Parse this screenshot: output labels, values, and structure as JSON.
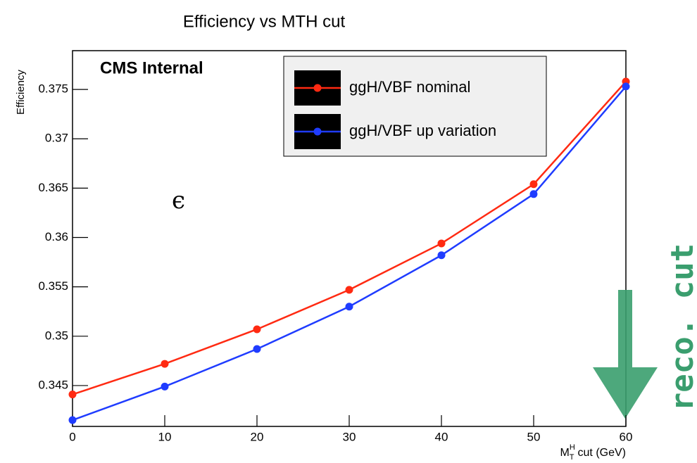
{
  "chart_data": {
    "type": "line",
    "title": "Efficiency vs MTH cut",
    "ylabel": "Efficiency",
    "xlabel": {
      "symbol": "M",
      "superscript": "H",
      "subscript": "T",
      "text": "cut (GeV)"
    },
    "annotations": {
      "experiment": "CMS Internal",
      "symbol": "ϵ",
      "side_note": "reco. cut"
    },
    "x": [
      0,
      10,
      20,
      30,
      40,
      50,
      60
    ],
    "series": [
      {
        "name": "ggH/VBF nominal",
        "color": "#ff2a12",
        "values": [
          0.3441,
          0.3472,
          0.3507,
          0.3547,
          0.3594,
          0.3654,
          0.3758
        ]
      },
      {
        "name": "ggH/VBF up variation",
        "color": "#1f3cff",
        "values": [
          0.3415,
          0.3449,
          0.3487,
          0.353,
          0.3582,
          0.3644,
          0.3753
        ]
      }
    ],
    "xlim": [
      0,
      60
    ],
    "xticks": [
      0,
      10,
      20,
      30,
      40,
      50,
      60
    ],
    "ylim": [
      0.34086,
      0.37893
    ],
    "yticks": [
      0.345,
      0.35,
      0.355,
      0.36,
      0.365,
      0.37,
      0.375
    ],
    "legend": "top-right"
  }
}
